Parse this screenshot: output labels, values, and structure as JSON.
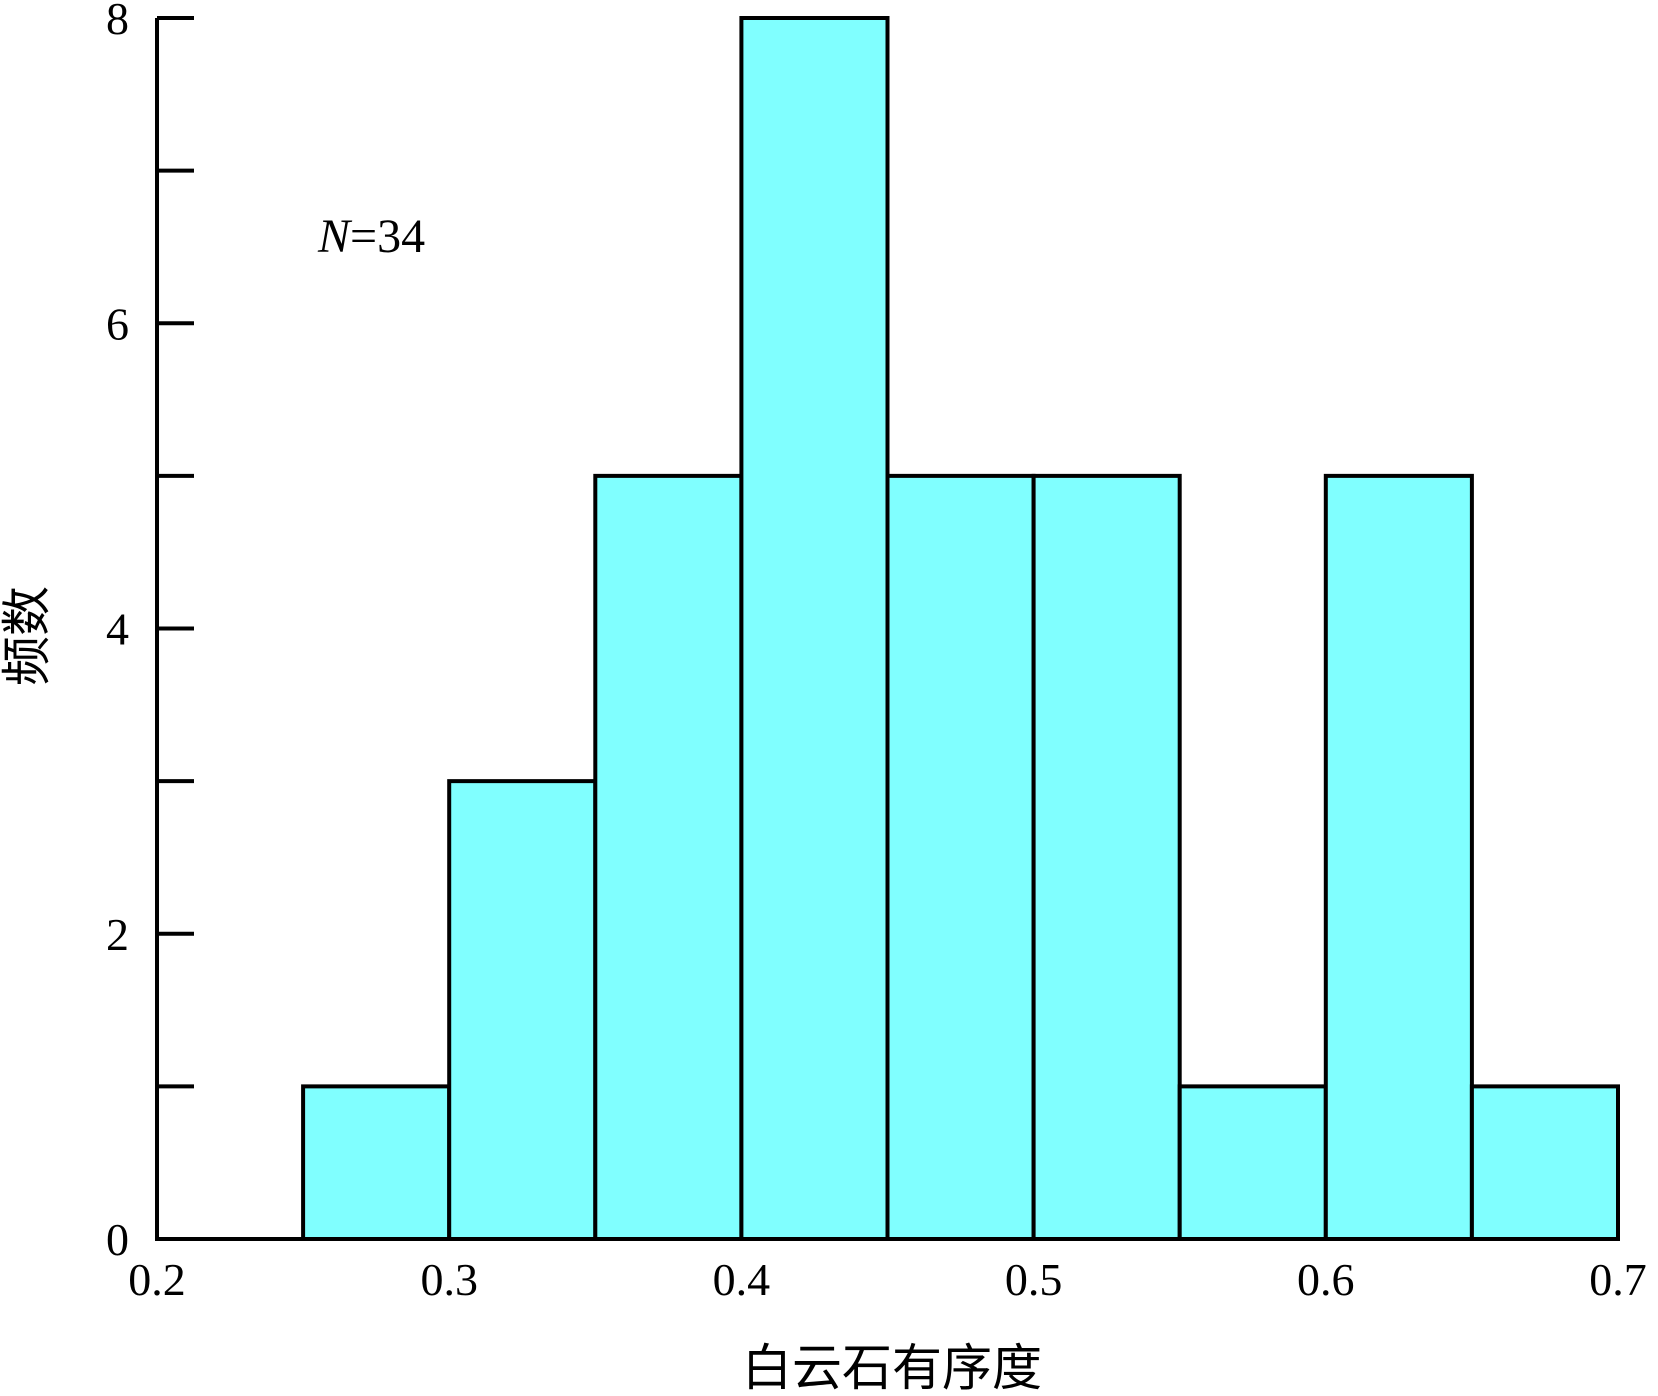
{
  "chart_data": {
    "type": "bar",
    "xlabel": "白云石有序度",
    "ylabel": "频数",
    "annotation": {
      "symbol": "N",
      "text": "=34"
    },
    "xlim": [
      0.2,
      0.7
    ],
    "ylim": [
      0,
      8
    ],
    "x_ticks": [
      "0.2",
      "0.3",
      "0.4",
      "0.5",
      "0.6",
      "0.7"
    ],
    "y_ticks": [
      "0",
      "2",
      "4",
      "6",
      "8"
    ],
    "bins": [
      {
        "x0": 0.25,
        "x1": 0.3,
        "value": 1
      },
      {
        "x0": 0.3,
        "x1": 0.35,
        "value": 3
      },
      {
        "x0": 0.35,
        "x1": 0.4,
        "value": 5
      },
      {
        "x0": 0.4,
        "x1": 0.45,
        "value": 8
      },
      {
        "x0": 0.45,
        "x1": 0.5,
        "value": 5
      },
      {
        "x0": 0.5,
        "x1": 0.55,
        "value": 5
      },
      {
        "x0": 0.55,
        "x1": 0.6,
        "value": 1
      },
      {
        "x0": 0.6,
        "x1": 0.65,
        "value": 5
      },
      {
        "x0": 0.65,
        "x1": 0.7,
        "value": 1
      }
    ],
    "bar_color": "#80ffff",
    "edge_color": "#000000",
    "grid": false
  }
}
